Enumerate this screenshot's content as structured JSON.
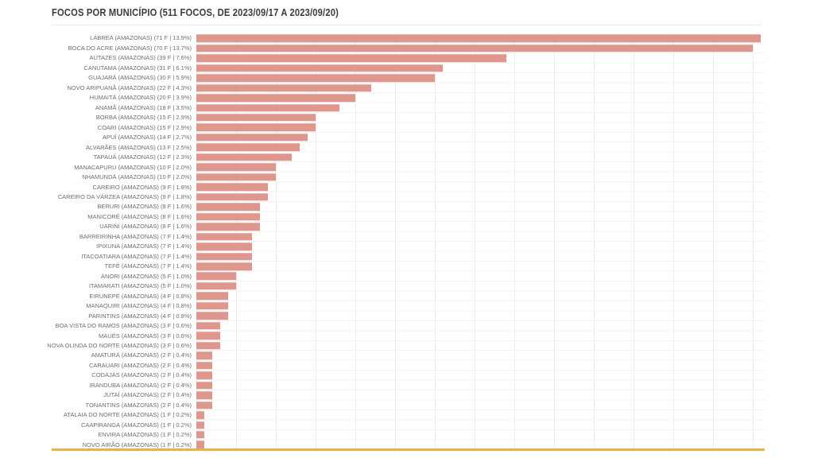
{
  "page": {
    "background": "#ffffff"
  },
  "header": {
    "title": "FOCOS POR MUNICÍPIO (511 FOCOS, DE 2023/09/17 A 2023/09/20)"
  },
  "chart_data": {
    "type": "bar",
    "orientation": "horizontal",
    "title": "FOCOS POR MUNICÍPIO (511 FOCOS, DE 2023/09/17 A 2023/09/20)",
    "total_focos": 511,
    "period": "DE 2023/09/17 A 2023/09/20",
    "state": "AMAZONAS",
    "unit_suffix": "F",
    "xlim": [
      0,
      71.5
    ],
    "grid_interval": 5,
    "grid": true,
    "legend": false,
    "bar_color": "#df968d",
    "baseline_color": "#ecb24a",
    "label_color": "#6f6f6f",
    "categories": [
      "LÁBREA",
      "BOCA DO ACRE",
      "AUTAZES",
      "CANUTAMA",
      "GUAJARÁ",
      "NOVO ARIPUANÃ",
      "HUMAITÁ",
      "ANAMÃ",
      "BORBA",
      "COARI",
      "APUÍ",
      "ALVARÃES",
      "TAPAUÁ",
      "MANACAPURU",
      "NHAMUNDÁ",
      "CAREIRO",
      "CAREIRO DA VÁRZEA",
      "BERURI",
      "MANICORÉ",
      "UARINI",
      "BARREIRINHA",
      "IPIXUNA",
      "ITACOATIARA",
      "TEFÉ",
      "ANORI",
      "ITAMARATI",
      "EIRUNEPÉ",
      "MANAQUIRI",
      "PARINTINS",
      "BOA VISTA DO RAMOS",
      "MAUÉS",
      "NOVA OLINDA DO NORTE",
      "AMATURÁ",
      "CARAUARI",
      "CODAJÁS",
      "IRANDUBA",
      "JUTAÍ",
      "TONANTINS",
      "ATALAIA DO NORTE",
      "CAAPIRANGA",
      "ENVIRA",
      "NOVO AIRÃO"
    ],
    "values": [
      71,
      70,
      39,
      31,
      30,
      22,
      20,
      18,
      15,
      15,
      14,
      13,
      12,
      10,
      10,
      9,
      9,
      8,
      8,
      8,
      7,
      7,
      7,
      7,
      5,
      5,
      4,
      4,
      4,
      3,
      3,
      3,
      2,
      2,
      2,
      2,
      2,
      2,
      1,
      1,
      1,
      1
    ],
    "rows": [
      {
        "name": "LÁBREA",
        "focos": 71,
        "pct": "13.9%"
      },
      {
        "name": "BOCA DO ACRE",
        "focos": 70,
        "pct": "13.7%"
      },
      {
        "name": "AUTAZES",
        "focos": 39,
        "pct": "7.6%"
      },
      {
        "name": "CANUTAMA",
        "focos": 31,
        "pct": "6.1%"
      },
      {
        "name": "GUAJARÁ",
        "focos": 30,
        "pct": "5.9%"
      },
      {
        "name": "NOVO ARIPUANÃ",
        "focos": 22,
        "pct": "4.3%"
      },
      {
        "name": "HUMAITÁ",
        "focos": 20,
        "pct": "3.9%"
      },
      {
        "name": "ANAMÃ",
        "focos": 18,
        "pct": "3.5%"
      },
      {
        "name": "BORBA",
        "focos": 15,
        "pct": "2.9%"
      },
      {
        "name": "COARI",
        "focos": 15,
        "pct": "2.9%"
      },
      {
        "name": "APUÍ",
        "focos": 14,
        "pct": "2.7%"
      },
      {
        "name": "ALVARÃES",
        "focos": 13,
        "pct": "2.5%"
      },
      {
        "name": "TAPAUÁ",
        "focos": 12,
        "pct": "2.3%"
      },
      {
        "name": "MANACAPURU",
        "focos": 10,
        "pct": "2.0%"
      },
      {
        "name": "NHAMUNDÁ",
        "focos": 10,
        "pct": "2.0%"
      },
      {
        "name": "CAREIRO",
        "focos": 9,
        "pct": "1.8%"
      },
      {
        "name": "CAREIRO DA VÁRZEA",
        "focos": 9,
        "pct": "1.8%"
      },
      {
        "name": "BERURI",
        "focos": 8,
        "pct": "1.6%"
      },
      {
        "name": "MANICORÉ",
        "focos": 8,
        "pct": "1.6%"
      },
      {
        "name": "UARINI",
        "focos": 8,
        "pct": "1.6%"
      },
      {
        "name": "BARREIRINHA",
        "focos": 7,
        "pct": "1.4%"
      },
      {
        "name": "IPIXUNA",
        "focos": 7,
        "pct": "1.4%"
      },
      {
        "name": "ITACOATIARA",
        "focos": 7,
        "pct": "1.4%"
      },
      {
        "name": "TEFÉ",
        "focos": 7,
        "pct": "1.4%"
      },
      {
        "name": "ANORI",
        "focos": 5,
        "pct": "1.0%"
      },
      {
        "name": "ITAMARATI",
        "focos": 5,
        "pct": "1.0%"
      },
      {
        "name": "EIRUNEPÉ",
        "focos": 4,
        "pct": "0.8%"
      },
      {
        "name": "MANAQUIRI",
        "focos": 4,
        "pct": "0.8%"
      },
      {
        "name": "PARINTINS",
        "focos": 4,
        "pct": "0.8%"
      },
      {
        "name": "BOA VISTA DO RAMOS",
        "focos": 3,
        "pct": "0.6%"
      },
      {
        "name": "MAUÉS",
        "focos": 3,
        "pct": "0.6%"
      },
      {
        "name": "NOVA OLINDA DO NORTE",
        "focos": 3,
        "pct": "0.6%"
      },
      {
        "name": "AMATURÁ",
        "focos": 2,
        "pct": "0.4%"
      },
      {
        "name": "CARAUARI",
        "focos": 2,
        "pct": "0.4%"
      },
      {
        "name": "CODAJÁS",
        "focos": 2,
        "pct": "0.4%"
      },
      {
        "name": "IRANDUBA",
        "focos": 2,
        "pct": "0.4%"
      },
      {
        "name": "JUTAÍ",
        "focos": 2,
        "pct": "0.4%"
      },
      {
        "name": "TONANTINS",
        "focos": 2,
        "pct": "0.4%"
      },
      {
        "name": "ATALAIA DO NORTE",
        "focos": 1,
        "pct": "0.2%"
      },
      {
        "name": "CAAPIRANGA",
        "focos": 1,
        "pct": "0.2%"
      },
      {
        "name": "ENVIRA",
        "focos": 1,
        "pct": "0.2%"
      },
      {
        "name": "NOVO AIRÃO",
        "focos": 1,
        "pct": "0.2%"
      }
    ]
  }
}
